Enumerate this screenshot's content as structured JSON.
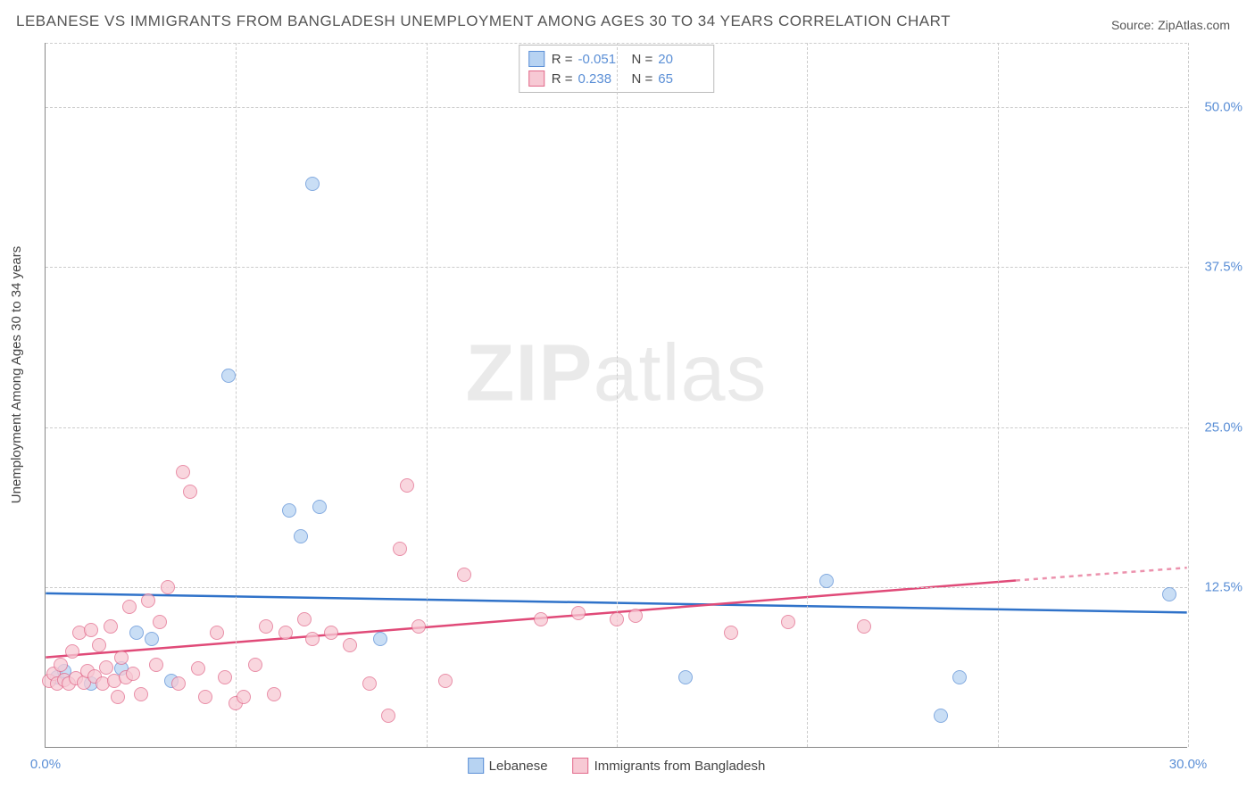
{
  "title": "LEBANESE VS IMMIGRANTS FROM BANGLADESH UNEMPLOYMENT AMONG AGES 30 TO 34 YEARS CORRELATION CHART",
  "source": "Source: ZipAtlas.com",
  "watermark": {
    "bold": "ZIP",
    "rest": "atlas"
  },
  "y_axis_label": "Unemployment Among Ages 30 to 34 years",
  "chart": {
    "type": "scatter",
    "xlim": [
      0,
      30
    ],
    "ylim": [
      0,
      55
    ],
    "x_ticks": [
      0,
      30
    ],
    "x_tick_labels": [
      "0.0%",
      "30.0%"
    ],
    "x_grid": [
      5,
      10,
      15,
      20,
      25,
      30
    ],
    "y_ticks": [
      12.5,
      25.0,
      37.5,
      50.0
    ],
    "y_tick_labels": [
      "12.5%",
      "25.0%",
      "37.5%",
      "50.0%"
    ],
    "background_color": "#ffffff",
    "grid_color": "#cccccc",
    "axis_color": "#888888",
    "marker_radius": 8,
    "series": [
      {
        "name": "Lebanese",
        "fill_color": "#b7d3f2",
        "stroke_color": "#5b8fd6",
        "swatch_fill": "#b7d3f2",
        "swatch_stroke": "#5b8fd6",
        "R": "-0.051",
        "N": "20",
        "trend": {
          "x1": 0,
          "y1": 12.0,
          "x2": 30,
          "y2": 10.5,
          "color": "#2f72c9",
          "width": 2.5,
          "dash": "none"
        },
        "points": [
          [
            0.3,
            5.5
          ],
          [
            0.5,
            6.0
          ],
          [
            1.2,
            5.0
          ],
          [
            2.0,
            6.2
          ],
          [
            2.4,
            9.0
          ],
          [
            2.8,
            8.5
          ],
          [
            3.3,
            5.2
          ],
          [
            4.8,
            29.0
          ],
          [
            6.4,
            18.5
          ],
          [
            6.7,
            16.5
          ],
          [
            7.0,
            44.0
          ],
          [
            7.2,
            18.8
          ],
          [
            8.8,
            8.5
          ],
          [
            16.8,
            5.5
          ],
          [
            20.5,
            13.0
          ],
          [
            23.5,
            2.5
          ],
          [
            24.0,
            5.5
          ],
          [
            29.5,
            12.0
          ]
        ]
      },
      {
        "name": "Immigrants from Bangladesh",
        "fill_color": "#f7c9d4",
        "stroke_color": "#e26a8b",
        "swatch_fill": "#f7c9d4",
        "swatch_stroke": "#e26a8b",
        "R": "0.238",
        "N": "65",
        "trend": {
          "x1": 0,
          "y1": 7.0,
          "x2": 25.5,
          "y2": 13.0,
          "color": "#e04a78",
          "width": 2.5,
          "dash": "none",
          "ext_x2": 30,
          "ext_y2": 14.0,
          "ext_dash": "5,5"
        },
        "points": [
          [
            0.1,
            5.2
          ],
          [
            0.2,
            5.8
          ],
          [
            0.3,
            5.0
          ],
          [
            0.4,
            6.5
          ],
          [
            0.5,
            5.3
          ],
          [
            0.6,
            5.0
          ],
          [
            0.7,
            7.5
          ],
          [
            0.8,
            5.4
          ],
          [
            0.9,
            9.0
          ],
          [
            1.0,
            5.1
          ],
          [
            1.1,
            6.0
          ],
          [
            1.2,
            9.2
          ],
          [
            1.3,
            5.6
          ],
          [
            1.4,
            8.0
          ],
          [
            1.5,
            5.0
          ],
          [
            1.6,
            6.3
          ],
          [
            1.7,
            9.5
          ],
          [
            1.8,
            5.2
          ],
          [
            1.9,
            4.0
          ],
          [
            2.0,
            7.0
          ],
          [
            2.1,
            5.5
          ],
          [
            2.2,
            11.0
          ],
          [
            2.3,
            5.8
          ],
          [
            2.5,
            4.2
          ],
          [
            2.7,
            11.5
          ],
          [
            2.9,
            6.5
          ],
          [
            3.0,
            9.8
          ],
          [
            3.2,
            12.5
          ],
          [
            3.5,
            5.0
          ],
          [
            3.6,
            21.5
          ],
          [
            3.8,
            20.0
          ],
          [
            4.0,
            6.2
          ],
          [
            4.2,
            4.0
          ],
          [
            4.5,
            9.0
          ],
          [
            4.7,
            5.5
          ],
          [
            5.0,
            3.5
          ],
          [
            5.2,
            4.0
          ],
          [
            5.5,
            6.5
          ],
          [
            5.8,
            9.5
          ],
          [
            6.0,
            4.2
          ],
          [
            6.3,
            9.0
          ],
          [
            6.8,
            10.0
          ],
          [
            7.0,
            8.5
          ],
          [
            7.5,
            9.0
          ],
          [
            8.0,
            8.0
          ],
          [
            8.5,
            5.0
          ],
          [
            9.0,
            2.5
          ],
          [
            9.3,
            15.5
          ],
          [
            9.5,
            20.5
          ],
          [
            9.8,
            9.5
          ],
          [
            10.5,
            5.2
          ],
          [
            11.0,
            13.5
          ],
          [
            13.0,
            10.0
          ],
          [
            14.0,
            10.5
          ],
          [
            15.0,
            10.0
          ],
          [
            15.5,
            10.3
          ],
          [
            18.0,
            9.0
          ],
          [
            19.5,
            9.8
          ],
          [
            21.5,
            9.5
          ]
        ]
      }
    ]
  },
  "legend_top_labels": {
    "R": "R =",
    "N": "N ="
  },
  "legend_bottom": [
    {
      "label": "Lebanese",
      "fill": "#b7d3f2",
      "stroke": "#5b8fd6"
    },
    {
      "label": "Immigrants from Bangladesh",
      "fill": "#f7c9d4",
      "stroke": "#e26a8b"
    }
  ]
}
